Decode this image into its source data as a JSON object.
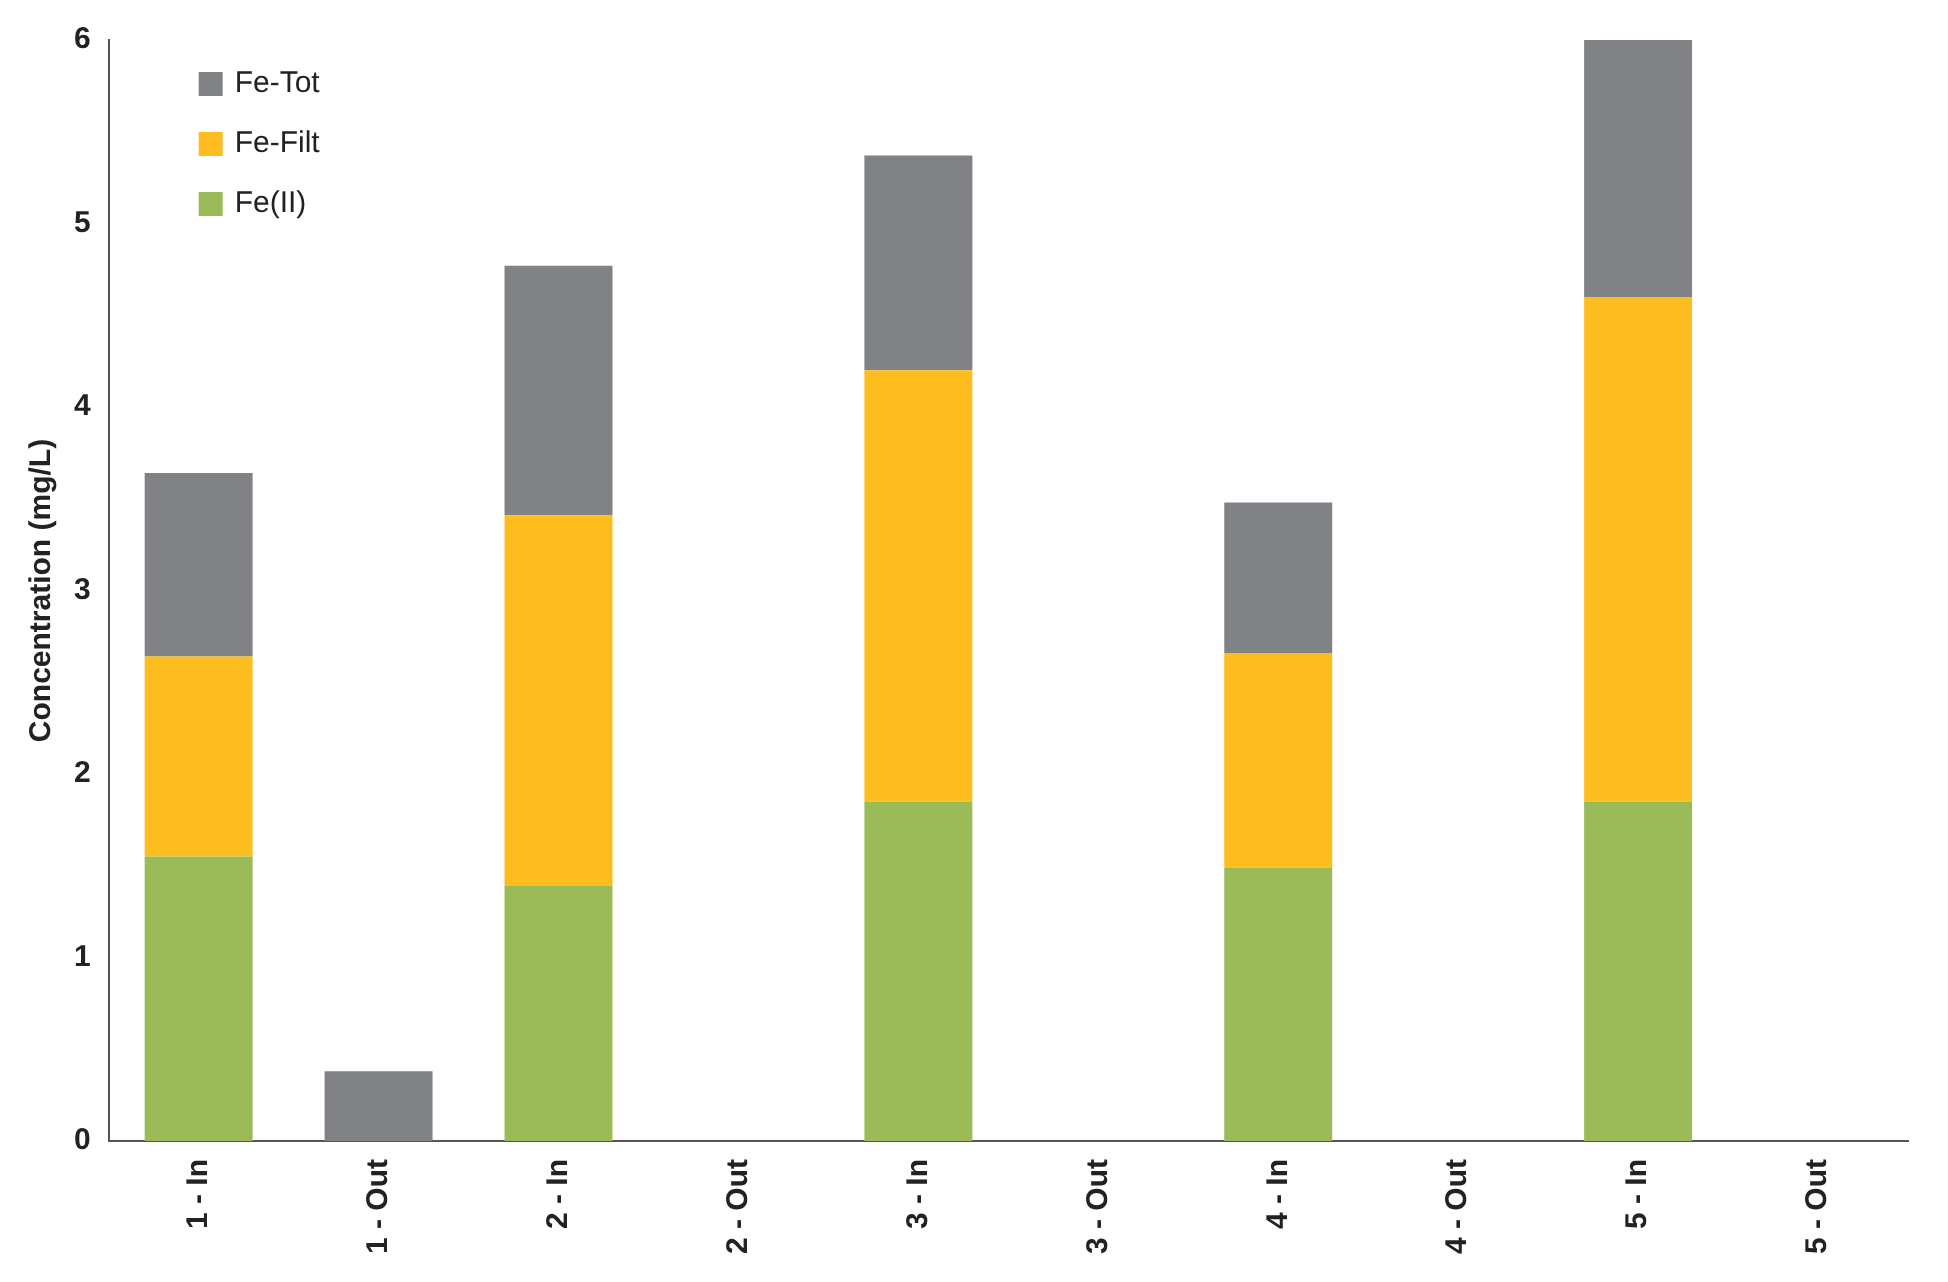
{
  "chart_data": {
    "type": "bar",
    "stacked": true,
    "ylabel": "Concentration (mg/L)",
    "categories": [
      "1 - In",
      "1 - Out",
      "2 - In",
      "2 - Out",
      "3 - In",
      "3 - Out",
      "4 - In",
      "4 - Out",
      "5 - In",
      "5 - Out"
    ],
    "series": [
      {
        "name": "Fe(II)",
        "color": "#9bbb59",
        "values": [
          1.55,
          0,
          1.39,
          0,
          1.85,
          0,
          1.49,
          0,
          1.85,
          0
        ]
      },
      {
        "name": "Fe-Filt",
        "color": "#fdbd1f",
        "values": [
          1.09,
          0,
          2.02,
          0,
          2.35,
          0,
          1.17,
          0,
          2.75,
          0
        ]
      },
      {
        "name": "Fe-Tot",
        "color": "#808285",
        "values": [
          1.0,
          0.38,
          1.36,
          0,
          1.17,
          0,
          0.82,
          0,
          1.4,
          0
        ]
      }
    ],
    "ylim": [
      0,
      6
    ],
    "yticks": [
      0,
      1,
      2,
      3,
      4,
      5,
      6
    ],
    "grid": false,
    "legend": "top left"
  }
}
